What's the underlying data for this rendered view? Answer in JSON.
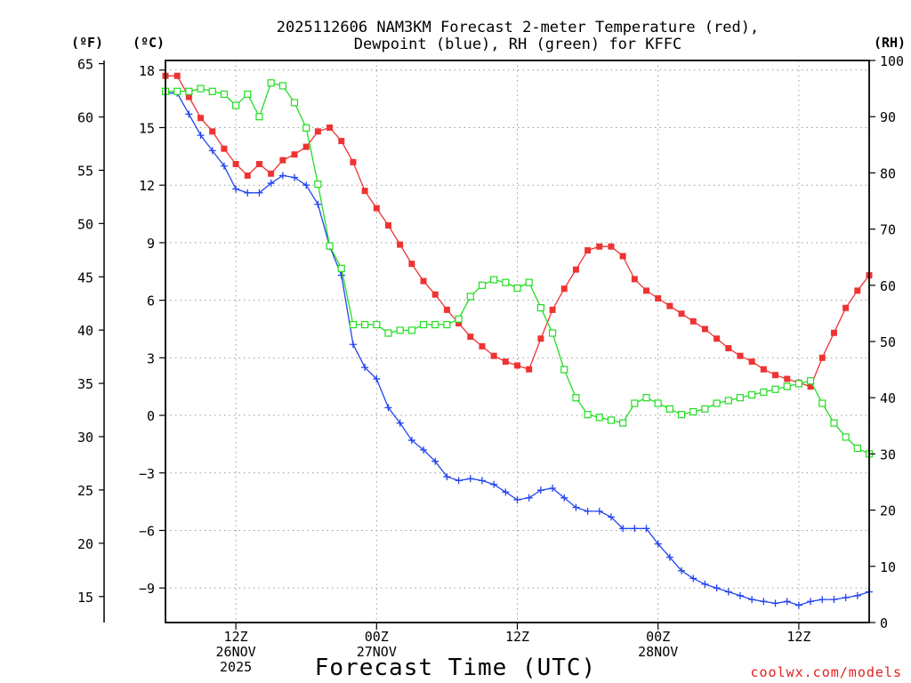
{
  "chart_data": {
    "type": "line",
    "title_lines": [
      "2025112606 NAM3KM Forecast 2-meter Temperature (red),",
      "Dewpoint (blue), RH (green) for KFFC"
    ],
    "xlabel": "Forecast Time (UTC)",
    "credit": "coolwx.com/models",
    "units": {
      "fahrenheit": "(ºF)",
      "celsius": "(ºC)",
      "rh": "(RH)"
    },
    "x_range_hours": [
      0,
      60
    ],
    "x_ticks": [
      {
        "hour": 6,
        "lines": [
          "12Z",
          "26NOV",
          "2025"
        ]
      },
      {
        "hour": 18,
        "lines": [
          "00Z",
          "27NOV"
        ]
      },
      {
        "hour": 30,
        "lines": [
          "12Z"
        ]
      },
      {
        "hour": 42,
        "lines": [
          "00Z",
          "28NOV"
        ]
      },
      {
        "hour": 54,
        "lines": [
          "12Z"
        ]
      }
    ],
    "celsius_axis": {
      "ylim": [
        -10.8,
        18.5
      ],
      "ticks": [
        18,
        15,
        12,
        9,
        6,
        3,
        0,
        -3,
        -6,
        -9
      ],
      "tick_labels": [
        "18",
        "15",
        "12",
        "9",
        "6",
        "3",
        "0",
        "−3",
        "−6",
        "−9"
      ]
    },
    "fahrenheit_axis": {
      "ticks": [
        65,
        60,
        55,
        50,
        45,
        40,
        35,
        30,
        25,
        20,
        15
      ],
      "tick_labels": [
        "65",
        "60",
        "55",
        "50",
        "45",
        "40",
        "35",
        "30",
        "25",
        "20",
        "15"
      ]
    },
    "rh_axis": {
      "ylim": [
        0,
        100
      ],
      "ticks": [
        100,
        90,
        80,
        70,
        60,
        50,
        40,
        30,
        20,
        10,
        0
      ],
      "tick_labels": [
        "100",
        "90",
        "80",
        "70",
        "60",
        "50",
        "40",
        "30",
        "20",
        "10",
        "0"
      ]
    },
    "series": [
      {
        "name": "2-meter Temperature",
        "unit": "C",
        "color": "#ee3333",
        "marker": "filled-square",
        "x": [
          0,
          1,
          2,
          3,
          4,
          5,
          6,
          7,
          8,
          9,
          10,
          11,
          12,
          13,
          14,
          15,
          16,
          17,
          18,
          19,
          20,
          21,
          22,
          23,
          24,
          25,
          26,
          27,
          28,
          29,
          30,
          31,
          32,
          33,
          34,
          35,
          36,
          37,
          38,
          39,
          40,
          41,
          42,
          43,
          44,
          45,
          46,
          47,
          48,
          49,
          50,
          51,
          52,
          53,
          54,
          55,
          56,
          57,
          58,
          59,
          60
        ],
        "values": [
          17.7,
          17.7,
          16.6,
          15.5,
          14.8,
          13.9,
          13.1,
          12.5,
          13.1,
          12.6,
          13.3,
          13.6,
          14.0,
          14.8,
          15.0,
          14.3,
          13.2,
          11.7,
          10.8,
          9.9,
          8.9,
          7.9,
          7.0,
          6.3,
          5.5,
          4.8,
          4.1,
          3.6,
          3.1,
          2.8,
          2.6,
          2.4,
          4.0,
          5.5,
          6.6,
          7.6,
          8.6,
          8.8,
          8.8,
          8.3,
          7.1,
          6.5,
          6.1,
          5.7,
          5.3,
          4.9,
          4.5,
          4.0,
          3.5,
          3.1,
          2.8,
          2.4,
          2.1,
          1.9,
          1.7,
          1.5,
          3.0,
          4.3,
          5.6,
          6.5,
          7.3
        ]
      },
      {
        "name": "Dewpoint",
        "unit": "C",
        "color": "#2244ee",
        "marker": "plus",
        "x": [
          0,
          1,
          2,
          3,
          4,
          5,
          6,
          7,
          8,
          9,
          10,
          11,
          12,
          13,
          14,
          15,
          16,
          17,
          18,
          19,
          20,
          21,
          22,
          23,
          24,
          25,
          26,
          27,
          28,
          29,
          30,
          31,
          32,
          33,
          34,
          35,
          36,
          37,
          38,
          39,
          40,
          41,
          42,
          43,
          44,
          45,
          46,
          47,
          48,
          49,
          50,
          51,
          52,
          53,
          54,
          55,
          56,
          57,
          58,
          59,
          60
        ],
        "values": [
          16.8,
          16.8,
          15.7,
          14.6,
          13.8,
          13.0,
          11.8,
          11.6,
          11.6,
          12.1,
          12.5,
          12.4,
          12.0,
          11.0,
          8.8,
          7.3,
          3.7,
          2.5,
          1.9,
          0.4,
          -0.4,
          -1.3,
          -1.8,
          -2.4,
          -3.2,
          -3.4,
          -3.3,
          -3.4,
          -3.6,
          -4.0,
          -4.4,
          -4.3,
          -3.9,
          -3.8,
          -4.3,
          -4.8,
          -5.0,
          -5.0,
          -5.3,
          -5.9,
          -5.9,
          -5.9,
          -6.7,
          -7.4,
          -8.1,
          -8.5,
          -8.8,
          -9.0,
          -9.2,
          -9.4,
          -9.6,
          -9.7,
          -9.8,
          -9.7,
          -9.9,
          -9.7,
          -9.6,
          -9.6,
          -9.5,
          -9.4,
          -9.2
        ]
      },
      {
        "name": "RH",
        "unit": "%",
        "color": "#22dd22",
        "marker": "open-square",
        "x": [
          0,
          1,
          2,
          3,
          4,
          5,
          6,
          7,
          8,
          9,
          10,
          11,
          12,
          13,
          14,
          15,
          16,
          17,
          18,
          19,
          20,
          21,
          22,
          23,
          24,
          25,
          26,
          27,
          28,
          29,
          30,
          31,
          32,
          33,
          34,
          35,
          36,
          37,
          38,
          39,
          40,
          41,
          42,
          43,
          44,
          45,
          46,
          47,
          48,
          49,
          50,
          51,
          52,
          53,
          54,
          55,
          56,
          57,
          58,
          59,
          60
        ],
        "values": [
          94.5,
          94.5,
          94.5,
          95,
          94.5,
          94,
          92,
          94,
          90,
          96,
          95.5,
          92.5,
          88,
          78,
          67,
          63,
          53,
          53,
          53,
          51.5,
          52,
          52,
          53,
          53,
          53,
          54,
          58,
          60,
          61,
          60.5,
          59.5,
          60.5,
          56,
          51.5,
          45,
          40,
          37,
          36.5,
          36,
          35.5,
          39,
          40,
          39,
          38,
          37,
          37.5,
          38,
          39,
          39.5,
          40,
          40.5,
          41,
          41.5,
          42,
          42.5,
          43,
          39,
          35.5,
          33,
          31,
          30
        ]
      }
    ]
  }
}
